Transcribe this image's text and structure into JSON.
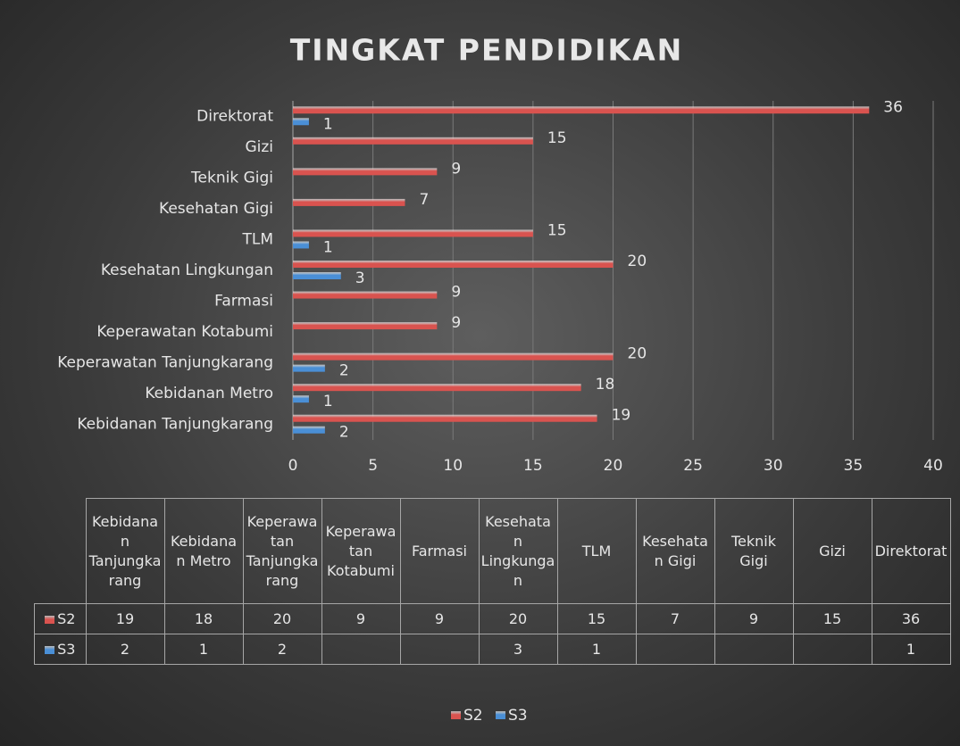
{
  "chart_data": {
    "type": "bar",
    "orientation": "horizontal",
    "title": "TINGKAT PENDIDIKAN",
    "categories": [
      "Kebidanan Tanjungkarang",
      "Kebidanan Metro",
      "Keperawatan Tanjungkarang",
      "Keperawatan Kotabumi",
      "Farmasi",
      "Kesehatan Lingkungan",
      "TLM",
      "Kesehatan Gigi",
      "Teknik Gigi",
      "Gizi",
      "Direktorat"
    ],
    "series": [
      {
        "name": "S2",
        "color": "#d9534f",
        "values": [
          19,
          18,
          20,
          9,
          9,
          20,
          15,
          7,
          9,
          15,
          36
        ]
      },
      {
        "name": "S3",
        "color": "#4a8fd6",
        "values": [
          2,
          1,
          2,
          null,
          null,
          3,
          1,
          null,
          null,
          null,
          1
        ]
      }
    ],
    "xlim": [
      0,
      40
    ],
    "xticks": [
      0,
      5,
      10,
      15,
      20,
      25,
      30,
      35,
      40
    ],
    "grid": true,
    "legend": "bottom",
    "data_table": true
  }
}
